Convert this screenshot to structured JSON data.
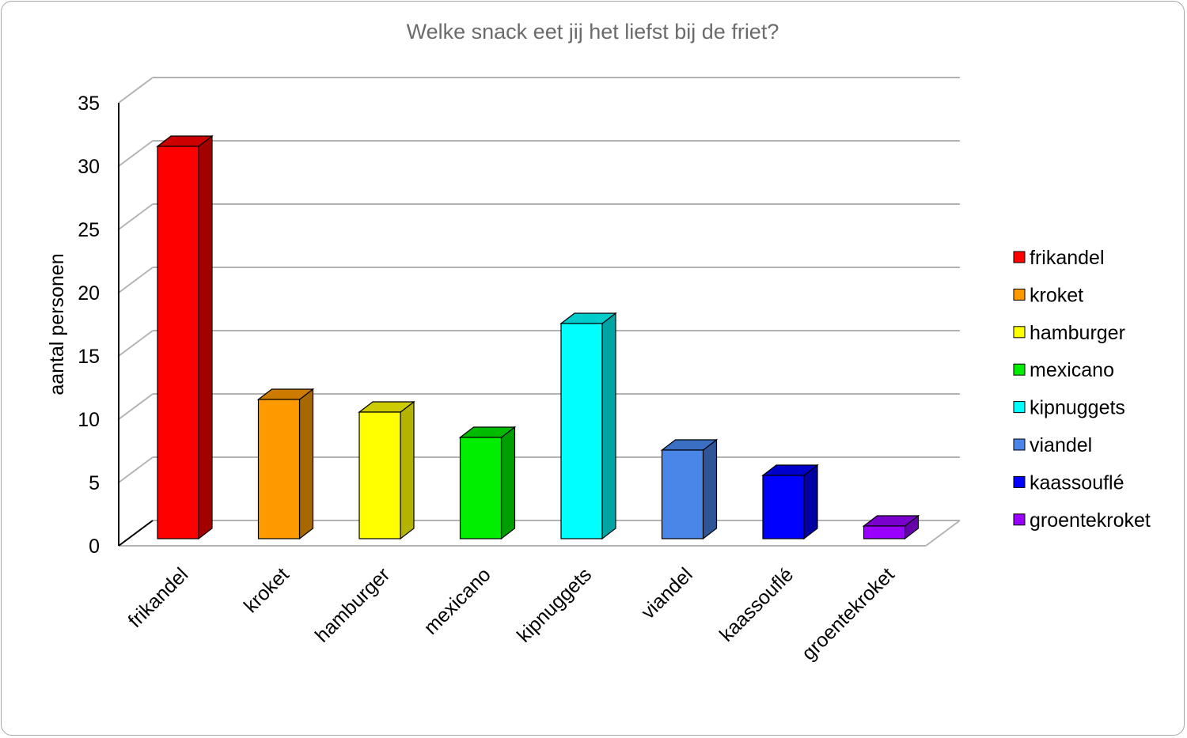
{
  "chart_data": {
    "type": "bar",
    "title": "Welke snack eet jij het liefst bij de friet?",
    "ylabel": "aantal personen",
    "xlabel": "",
    "ylim": [
      0,
      35
    ],
    "yticks": [
      0,
      5,
      10,
      15,
      20,
      25,
      30,
      35
    ],
    "grid": true,
    "legend_position": "right",
    "categories": [
      "frikandel",
      "kroket",
      "hamburger",
      "mexicano",
      "kipnuggets",
      "viandel",
      "kaassouflé",
      "groentekroket"
    ],
    "values": [
      31,
      11,
      10,
      8,
      17,
      7,
      5,
      1
    ],
    "colors": [
      "#ff0000",
      "#ff9900",
      "#ffff00",
      "#00ee00",
      "#00ffff",
      "#4a86e8",
      "#0000ff",
      "#9900ff"
    ],
    "side_colors": [
      "#a30000",
      "#a86800",
      "#b3b300",
      "#009e00",
      "#00a3a3",
      "#2f5597",
      "#0000a3",
      "#6600aa"
    ],
    "top_colors": [
      "#cc0000",
      "#cc7a00",
      "#cccc00",
      "#00bb00",
      "#00cccc",
      "#3a6fc4",
      "#0000cc",
      "#7a00cc"
    ]
  }
}
